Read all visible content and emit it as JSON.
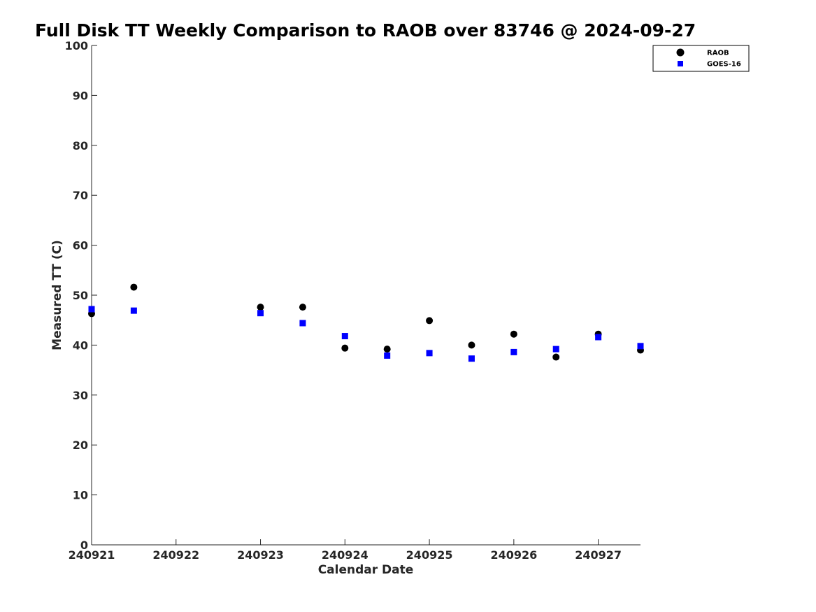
{
  "chart_data": {
    "type": "scatter",
    "title": "Full Disk TT Weekly Comparison to RAOB over 83746 @ 2024-09-27",
    "xlabel": "Calendar Date",
    "ylabel": "Measured TT (C)",
    "xlim": [
      0,
      6.5
    ],
    "ylim": [
      0,
      100
    ],
    "xticks": [
      {
        "value": 0,
        "label": "240921"
      },
      {
        "value": 1,
        "label": "240922"
      },
      {
        "value": 2,
        "label": "240923"
      },
      {
        "value": 3,
        "label": "240924"
      },
      {
        "value": 4,
        "label": "240925"
      },
      {
        "value": 5,
        "label": "240926"
      },
      {
        "value": 6,
        "label": "240927"
      }
    ],
    "yticks": [
      0,
      10,
      20,
      30,
      40,
      50,
      60,
      70,
      80,
      90,
      100
    ],
    "grid": false,
    "legend_position": "top-right",
    "series": [
      {
        "name": "RAOB",
        "marker": "circle",
        "color": "#000000",
        "points": [
          {
            "x": 0,
            "y": 46.3
          },
          {
            "x": 0.5,
            "y": 51.6
          },
          {
            "x": 2,
            "y": 47.6
          },
          {
            "x": 2.5,
            "y": 47.6
          },
          {
            "x": 3,
            "y": 39.4
          },
          {
            "x": 3.5,
            "y": 39.2
          },
          {
            "x": 4,
            "y": 44.9
          },
          {
            "x": 4.5,
            "y": 40.0
          },
          {
            "x": 5,
            "y": 42.2
          },
          {
            "x": 5.5,
            "y": 37.6
          },
          {
            "x": 6,
            "y": 42.2
          },
          {
            "x": 6.5,
            "y": 39.0
          }
        ]
      },
      {
        "name": "GOES-16",
        "marker": "square",
        "color": "#0000ff",
        "points": [
          {
            "x": 0,
            "y": 47.2
          },
          {
            "x": 0.5,
            "y": 46.9
          },
          {
            "x": 2,
            "y": 46.4
          },
          {
            "x": 2.5,
            "y": 44.4
          },
          {
            "x": 3,
            "y": 41.8
          },
          {
            "x": 3.5,
            "y": 37.9
          },
          {
            "x": 4,
            "y": 38.4
          },
          {
            "x": 4.5,
            "y": 37.3
          },
          {
            "x": 5,
            "y": 38.6
          },
          {
            "x": 5.5,
            "y": 39.2
          },
          {
            "x": 6,
            "y": 41.6
          },
          {
            "x": 6.5,
            "y": 39.8
          }
        ]
      }
    ]
  }
}
